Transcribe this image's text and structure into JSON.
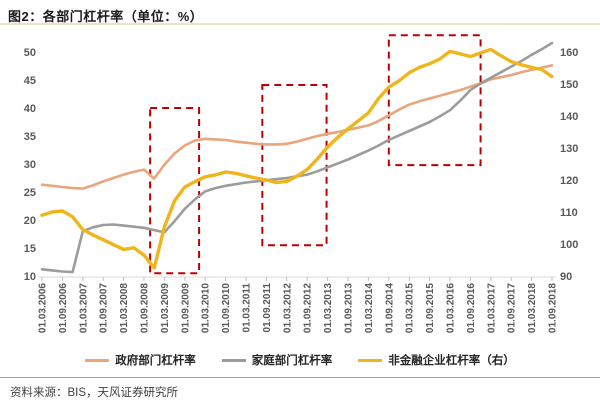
{
  "header": {
    "title": "图2：各部门杠杆率（单位：%）"
  },
  "footer": {
    "source": "资料来源：BIS，天风证券研究所"
  },
  "legend": {
    "items": [
      {
        "label": "政府部门杠杆率"
      },
      {
        "label": "家庭部门杠杆率"
      },
      {
        "label": "非金融企业杠杆率（右）"
      }
    ]
  },
  "colors": {
    "government_line": "#E9A57B",
    "household_line": "#9C9C9C",
    "nonfinancial_line": "#F1B51C",
    "highlight_box": "#C00000",
    "axis_text": "#595959",
    "baseline": "#D9D9D9",
    "title_rule": "#F0E1C6",
    "footer_rule": "#B5A272"
  },
  "chart_data": {
    "type": "line",
    "title": "图2：各部门杠杆率（单位：%）",
    "frequency_note": "quarterly series; x tick labels mark every second point",
    "x_tick_labels": [
      "01.03.2006",
      "01.09.2006",
      "01.03.2007",
      "01.09.2007",
      "01.03.2008",
      "01.09.2008",
      "01.03.2009",
      "01.09.2009",
      "01.03.2010",
      "01.09.2010",
      "01.03.2011",
      "01.09.2011",
      "01.03.2012",
      "01.09.2012",
      "01.03.2013",
      "01.09.2013",
      "01.03.2014",
      "01.09.2014",
      "01.03.2015",
      "01.09.2015",
      "01.03.2016",
      "01.09.2016",
      "01.03.2017",
      "01.09.2017",
      "01.03.2018",
      "01.09.2018"
    ],
    "left_axis": {
      "min": 10,
      "max": 50,
      "step": 5
    },
    "right_axis": {
      "min": 90,
      "max": 160,
      "step": 10
    },
    "grid": "off",
    "legend_position": "bottom",
    "series": [
      {
        "name": "政府部门杠杆率",
        "axis": "left",
        "color": "#E9A57B",
        "stroke_width": 2.6,
        "values": [
          26.3,
          26.1,
          25.9,
          25.7,
          25.6,
          26.2,
          26.9,
          27.5,
          28.1,
          28.6,
          29.0,
          27.4,
          29.9,
          31.9,
          33.3,
          34.2,
          34.5,
          34.4,
          34.3,
          34.0,
          33.8,
          33.6,
          33.5,
          33.5,
          33.6,
          34.0,
          34.5,
          35.0,
          35.4,
          35.7,
          36.1,
          36.5,
          36.9,
          37.7,
          38.7,
          39.7,
          40.6,
          41.2,
          41.7,
          42.2,
          42.7,
          43.2,
          43.8,
          44.4,
          45.1,
          45.5,
          45.9,
          46.4,
          46.8,
          47.2,
          47.6
        ]
      },
      {
        "name": "家庭部门杠杆率",
        "axis": "left",
        "color": "#9C9C9C",
        "stroke_width": 2.6,
        "values": [
          11.2,
          11.0,
          10.8,
          10.7,
          18.0,
          18.7,
          19.1,
          19.2,
          19.0,
          18.8,
          18.6,
          18.2,
          17.8,
          19.8,
          22.0,
          23.7,
          25.1,
          25.7,
          26.1,
          26.4,
          26.7,
          26.9,
          27.1,
          27.3,
          27.5,
          27.8,
          28.1,
          28.7,
          29.4,
          30.1,
          30.8,
          31.6,
          32.4,
          33.3,
          34.3,
          35.1,
          35.9,
          36.7,
          37.5,
          38.5,
          39.6,
          41.3,
          43.2,
          44.4,
          45.4,
          46.4,
          47.4,
          48.4,
          49.5,
          50.5,
          51.6
        ]
      },
      {
        "name": "非金融企业杠杆率（右）",
        "axis": "right",
        "color": "#F1B51C",
        "stroke_width": 3.4,
        "values": [
          109.0,
          110.0,
          110.3,
          108.5,
          104.5,
          102.8,
          101.3,
          99.8,
          98.3,
          98.8,
          96.5,
          92.5,
          105.4,
          113.5,
          117.8,
          119.5,
          121.0,
          121.6,
          122.5,
          122.1,
          121.3,
          120.6,
          120.0,
          119.2,
          119.6,
          121.2,
          123.3,
          126.6,
          130.3,
          133.3,
          136.0,
          138.5,
          141.0,
          145.5,
          149.0,
          151.0,
          153.5,
          155.2,
          156.3,
          157.8,
          160.2,
          159.4,
          158.6,
          159.7,
          160.8,
          158.8,
          157.0,
          156.0,
          155.2,
          154.5,
          152.3
        ]
      }
    ],
    "highlight_boxes": [
      {
        "q_start": 10.6,
        "q_end": 15.4,
        "v_top": 40.0,
        "v_bottom": 10.5
      },
      {
        "q_start": 21.6,
        "q_end": 27.9,
        "v_top": 44.1,
        "v_bottom": 15.5
      },
      {
        "q_start": 34.0,
        "q_end": 43.0,
        "v_top": 53.0,
        "v_bottom": 29.8
      }
    ],
    "highlight_color": "#C00000"
  }
}
